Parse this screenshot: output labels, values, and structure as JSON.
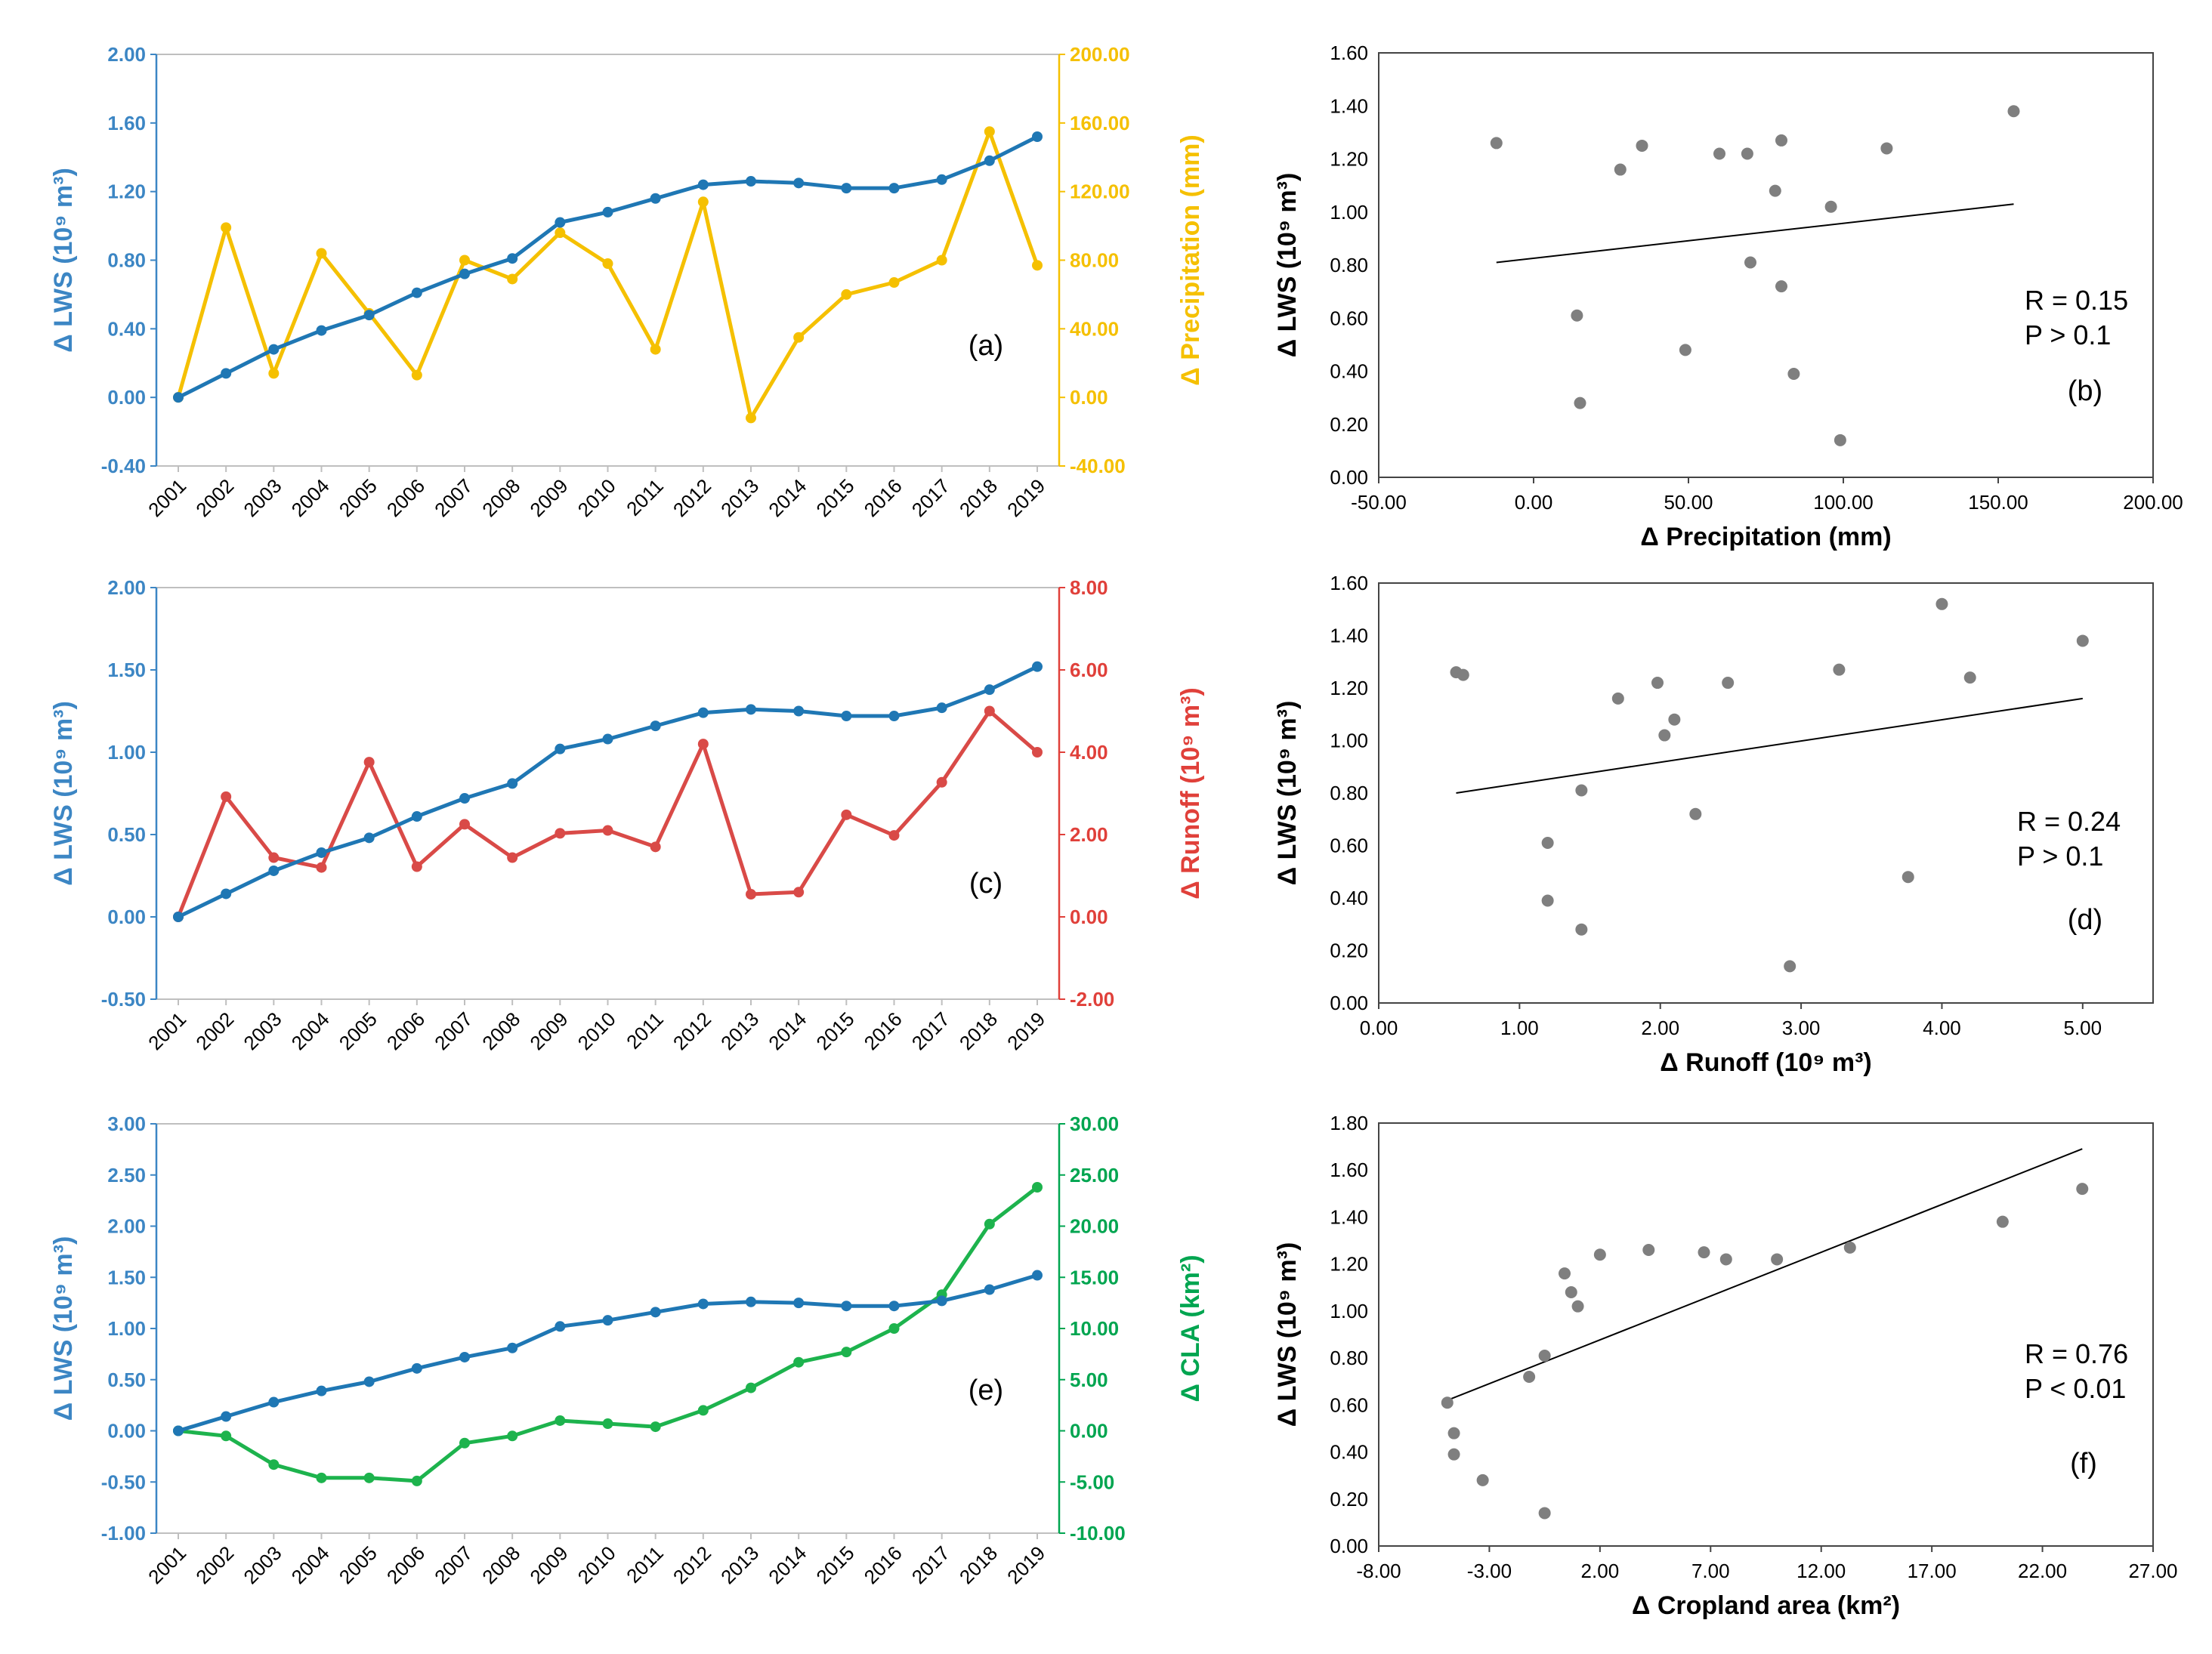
{
  "chart_data": [
    {
      "id": "a",
      "type": "line",
      "panel_label": "(a)",
      "x": [
        "2001",
        "2002",
        "2003",
        "2004",
        "2005",
        "2006",
        "2007",
        "2008",
        "2009",
        "2010",
        "2011",
        "2012",
        "2013",
        "2014",
        "2015",
        "2016",
        "2017",
        "2018",
        "2019"
      ],
      "left_axis": {
        "label": "Δ LWS (10⁹ m³)",
        "ylim": [
          -0.4,
          2.0
        ],
        "ticks": [
          "-0.40",
          "0.00",
          "0.40",
          "0.80",
          "1.20",
          "1.60",
          "2.00"
        ],
        "color": "#3c86c4"
      },
      "right_axis": {
        "label": "Δ Precipitation (mm)",
        "ylim": [
          -40,
          200
        ],
        "ticks": [
          "-40.00",
          "0.00",
          "40.00",
          "80.00",
          "120.00",
          "160.00",
          "200.00"
        ],
        "color": "#f5c000"
      },
      "series": [
        {
          "name": "Δ LWS",
          "axis": "left",
          "color": "#1f77b4",
          "values": [
            0,
            0.14,
            0.28,
            0.39,
            0.48,
            0.61,
            0.72,
            0.81,
            1.02,
            1.08,
            1.16,
            1.24,
            1.26,
            1.25,
            1.22,
            1.22,
            1.27,
            1.38,
            1.52
          ]
        },
        {
          "name": "Δ Precipitation",
          "axis": "right",
          "color": "#f5c000",
          "values": [
            0,
            99,
            14,
            84,
            49,
            13,
            80,
            69,
            96,
            78,
            28,
            114,
            -12,
            35,
            60,
            67,
            80,
            155,
            77
          ]
        }
      ]
    },
    {
      "id": "b",
      "type": "scatter",
      "panel_label": "(b)",
      "xlabel": "Δ Precipitation (mm)",
      "ylabel": "Δ LWS (10⁹ m³)",
      "xlim": [
        -50,
        200
      ],
      "ylim": [
        0,
        1.6
      ],
      "xticks": [
        "-50.00",
        "0.00",
        "50.00",
        "100.00",
        "150.00",
        "200.00"
      ],
      "yticks": [
        "0.00",
        "0.20",
        "0.40",
        "0.60",
        "0.80",
        "1.00",
        "1.20",
        "1.40",
        "1.60"
      ],
      "x": [
        -12,
        14,
        15,
        28,
        35,
        49,
        60,
        69,
        70,
        78,
        80,
        80,
        84,
        96,
        99,
        114,
        155
      ],
      "y": [
        1.26,
        0.61,
        0.28,
        1.16,
        1.25,
        0.48,
        1.22,
        1.22,
        0.81,
        1.08,
        1.27,
        0.72,
        0.39,
        1.02,
        0.14,
        1.24,
        1.38
      ],
      "trend": {
        "x": [
          -12,
          155
        ],
        "y": [
          0.81,
          1.03
        ]
      },
      "annotations": [
        "R = 0.15",
        "P  >  0.1"
      ]
    },
    {
      "id": "c",
      "type": "line",
      "panel_label": "(c)",
      "x": [
        "2001",
        "2002",
        "2003",
        "2004",
        "2005",
        "2006",
        "2007",
        "2008",
        "2009",
        "2010",
        "2011",
        "2012",
        "2013",
        "2014",
        "2015",
        "2016",
        "2017",
        "2018",
        "2019"
      ],
      "left_axis": {
        "label": "Δ LWS (10⁹  m³)",
        "ylim": [
          -0.5,
          2.0
        ],
        "ticks": [
          "-0.50",
          "0.00",
          "0.50",
          "1.00",
          "1.50",
          "2.00"
        ],
        "color": "#3c86c4"
      },
      "right_axis": {
        "label": "Δ Runoff (10⁹ m³)",
        "ylim": [
          -2,
          8
        ],
        "ticks": [
          "-2.00",
          "0.00",
          "2.00",
          "4.00",
          "6.00",
          "8.00"
        ],
        "color": "#e0403a"
      },
      "series": [
        {
          "name": "Δ LWS",
          "axis": "left",
          "color": "#1f77b4",
          "values": [
            0,
            0.14,
            0.28,
            0.39,
            0.48,
            0.61,
            0.72,
            0.81,
            1.02,
            1.08,
            1.16,
            1.24,
            1.26,
            1.25,
            1.22,
            1.22,
            1.27,
            1.38,
            1.52
          ]
        },
        {
          "name": "Δ Runoff",
          "axis": "right",
          "color": "#d94a47",
          "values": [
            0,
            2.92,
            1.44,
            1.2,
            3.76,
            1.22,
            2.25,
            1.44,
            2.03,
            2.1,
            1.7,
            4.2,
            0.55,
            0.6,
            2.48,
            1.98,
            3.27,
            5.0,
            4.0
          ]
        }
      ]
    },
    {
      "id": "d",
      "type": "scatter",
      "panel_label": "(d)",
      "xlabel": "Δ Runoff (10⁹ m³)",
      "ylabel": "Δ LWS (10⁹ m³)",
      "xlim": [
        0,
        5.5
      ],
      "ylim": [
        0,
        1.6
      ],
      "xticks": [
        "0.00",
        "1.00",
        "2.00",
        "3.00",
        "4.00",
        "5.00"
      ],
      "yticks": [
        "0.00",
        "0.20",
        "0.40",
        "0.60",
        "0.80",
        "1.00",
        "1.20",
        "1.40",
        "1.60"
      ],
      "x": [
        0.55,
        0.6,
        1.2,
        1.2,
        1.44,
        1.44,
        1.7,
        1.98,
        2.03,
        2.1,
        2.25,
        2.48,
        2.92,
        3.27,
        3.76,
        4.0,
        4.2,
        5.0
      ],
      "y": [
        1.26,
        1.25,
        0.61,
        0.39,
        0.81,
        0.28,
        1.16,
        1.22,
        1.02,
        1.08,
        0.72,
        1.22,
        0.14,
        1.27,
        0.48,
        1.52,
        1.24,
        1.38
      ],
      "trend": {
        "x": [
          0.55,
          5.0
        ],
        "y": [
          0.8,
          1.16
        ]
      },
      "annotations": [
        "R = 0.24",
        "P  >  0.1"
      ]
    },
    {
      "id": "e",
      "type": "line",
      "panel_label": "(e)",
      "x": [
        "2001",
        "2002",
        "2003",
        "2004",
        "2005",
        "2006",
        "2007",
        "2008",
        "2009",
        "2010",
        "2011",
        "2012",
        "2013",
        "2014",
        "2015",
        "2016",
        "2017",
        "2018",
        "2019"
      ],
      "left_axis": {
        "label": "Δ LWS (10⁹  m³)",
        "ylim": [
          -1.0,
          3.0
        ],
        "ticks": [
          "-1.00",
          "-0.50",
          "0.00",
          "0.50",
          "1.00",
          "1.50",
          "2.00",
          "2.50",
          "3.00"
        ],
        "color": "#3c86c4"
      },
      "right_axis": {
        "label": "Δ CLA (km²)",
        "ylim": [
          -10,
          30
        ],
        "ticks": [
          "-10.00",
          "-5.00",
          "0.00",
          "5.00",
          "10.00",
          "15.00",
          "20.00",
          "25.00",
          "30.00"
        ],
        "color": "#00a550"
      },
      "series": [
        {
          "name": "Δ LWS",
          "axis": "left",
          "color": "#1f77b4",
          "values": [
            0,
            0.14,
            0.28,
            0.39,
            0.48,
            0.61,
            0.72,
            0.81,
            1.02,
            1.08,
            1.16,
            1.24,
            1.26,
            1.25,
            1.22,
            1.22,
            1.27,
            1.38,
            1.52
          ]
        },
        {
          "name": "Δ CLA",
          "axis": "right",
          "color": "#1db34d",
          "values": [
            0,
            -0.5,
            -3.3,
            -4.6,
            -4.6,
            -4.9,
            -1.2,
            -0.5,
            1.0,
            0.7,
            0.4,
            2.0,
            4.2,
            6.7,
            7.7,
            10.0,
            13.3,
            20.2,
            23.8
          ]
        }
      ]
    },
    {
      "id": "f",
      "type": "scatter",
      "panel_label": "(f)",
      "xlabel": "Δ Cropland area (km²)",
      "ylabel": "Δ LWS (10⁹ m³)",
      "xlim": [
        -8,
        27
      ],
      "ylim": [
        0,
        1.8
      ],
      "xticks": [
        "-8.00",
        "-3.00",
        "2.00",
        "7.00",
        "12.00",
        "17.00",
        "22.00",
        "27.00"
      ],
      "yticks": [
        "0.00",
        "0.20",
        "0.40",
        "0.60",
        "0.80",
        "1.00",
        "1.20",
        "1.40",
        "1.60",
        "1.80"
      ],
      "x": [
        -4.9,
        -4.6,
        -4.6,
        -3.3,
        -1.2,
        -0.5,
        -0.5,
        0.4,
        0.7,
        1.0,
        2.0,
        4.2,
        6.7,
        7.7,
        10.0,
        13.3,
        20.2,
        23.8
      ],
      "y": [
        0.61,
        0.48,
        0.39,
        0.28,
        0.72,
        0.81,
        0.14,
        1.16,
        1.08,
        1.02,
        1.24,
        1.26,
        1.25,
        1.22,
        1.22,
        1.27,
        1.38,
        1.52
      ],
      "trend": {
        "x": [
          -4.9,
          23.8
        ],
        "y": [
          0.62,
          1.69
        ]
      },
      "annotations": [
        "R = 0.76",
        "P < 0.01"
      ]
    }
  ]
}
